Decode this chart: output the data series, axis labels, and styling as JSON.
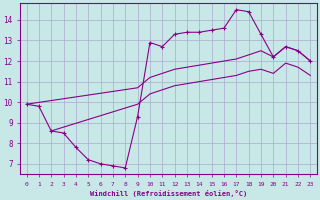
{
  "background_color": "#c8e8e8",
  "grid_color": "#aaaacc",
  "line_color": "#880088",
  "xlabel": "Windchill (Refroidissement éolien,°C)",
  "xlim": [
    -0.5,
    23.5
  ],
  "ylim": [
    6.5,
    14.8
  ],
  "yticks": [
    7,
    8,
    9,
    10,
    11,
    12,
    13,
    14
  ],
  "xticks": [
    0,
    1,
    2,
    3,
    4,
    5,
    6,
    7,
    8,
    9,
    10,
    11,
    12,
    13,
    14,
    15,
    16,
    17,
    18,
    19,
    20,
    21,
    22,
    23
  ],
  "line1_x": [
    0,
    1,
    2,
    3,
    4,
    5,
    6,
    7,
    8,
    9,
    10,
    11,
    12,
    13,
    14,
    15,
    16,
    17,
    18,
    19,
    20,
    21,
    22,
    23
  ],
  "line1_y": [
    9.9,
    9.8,
    8.6,
    8.5,
    7.8,
    7.2,
    7.0,
    6.9,
    6.8,
    9.3,
    12.9,
    12.7,
    13.3,
    13.4,
    13.4,
    13.5,
    13.6,
    14.5,
    14.4,
    13.3,
    12.2,
    12.7,
    12.5,
    12.0
  ],
  "line2_x": [
    0,
    9,
    10,
    11,
    12,
    13,
    14,
    15,
    16,
    17,
    18,
    19,
    20,
    21,
    22,
    23
  ],
  "line2_y": [
    9.9,
    10.7,
    11.2,
    11.4,
    11.6,
    11.7,
    11.8,
    11.9,
    12.0,
    12.1,
    12.3,
    12.5,
    12.2,
    12.7,
    12.5,
    12.0
  ],
  "line3_x": [
    2,
    9,
    10,
    11,
    12,
    13,
    14,
    15,
    16,
    17,
    18,
    19,
    20,
    21,
    22,
    23
  ],
  "line3_y": [
    8.6,
    9.9,
    10.4,
    10.6,
    10.8,
    10.9,
    11.0,
    11.1,
    11.2,
    11.3,
    11.5,
    11.6,
    11.4,
    11.9,
    11.7,
    11.3
  ]
}
